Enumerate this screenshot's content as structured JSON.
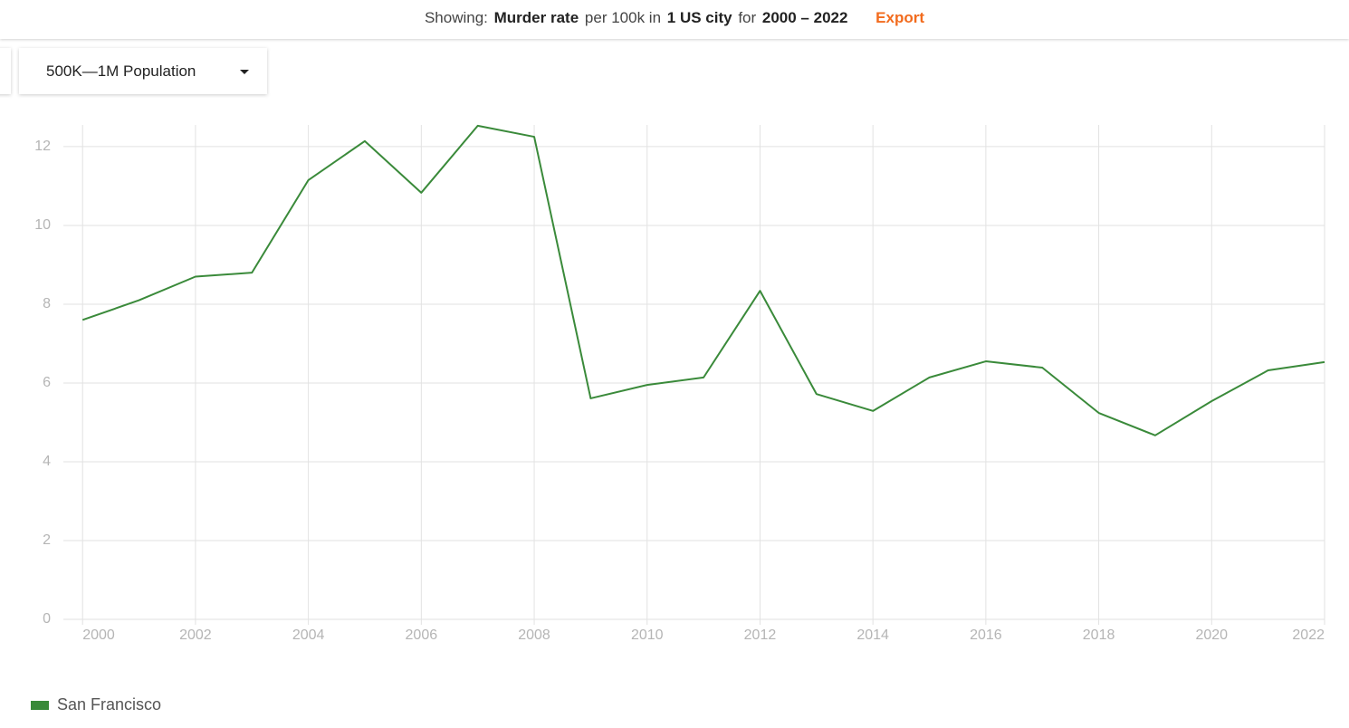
{
  "header": {
    "prefix": "Showing:",
    "metric": "Murder rate",
    "unit": "per 100k in",
    "scope": "1 US city",
    "range_prefix": "for",
    "range": "2000 – 2022",
    "export": "Export"
  },
  "filter": {
    "label": "500K—1M Population"
  },
  "chart_data": {
    "type": "line",
    "x": [
      2000,
      2001,
      2002,
      2003,
      2004,
      2005,
      2006,
      2007,
      2008,
      2009,
      2010,
      2011,
      2012,
      2013,
      2014,
      2015,
      2016,
      2017,
      2018,
      2019,
      2020,
      2021,
      2022
    ],
    "series": [
      {
        "name": "San Francisco",
        "color": "#3a8a3a",
        "values": [
          7.6,
          8.1,
          8.7,
          8.8,
          11.15,
          12.14,
          10.83,
          12.53,
          12.25,
          5.61,
          5.95,
          6.14,
          8.34,
          5.72,
          5.29,
          6.14,
          6.55,
          6.39,
          5.24,
          4.67,
          5.54,
          6.32,
          6.53
        ]
      }
    ],
    "xlim": [
      1999.66,
      2022
    ],
    "xticks": [
      2000,
      2002,
      2004,
      2006,
      2008,
      2010,
      2012,
      2014,
      2016,
      2018,
      2020,
      2022
    ],
    "ylim": [
      0,
      12.55
    ],
    "yticks": [
      0,
      2,
      4,
      6,
      8,
      10,
      12
    ],
    "grid": true
  }
}
